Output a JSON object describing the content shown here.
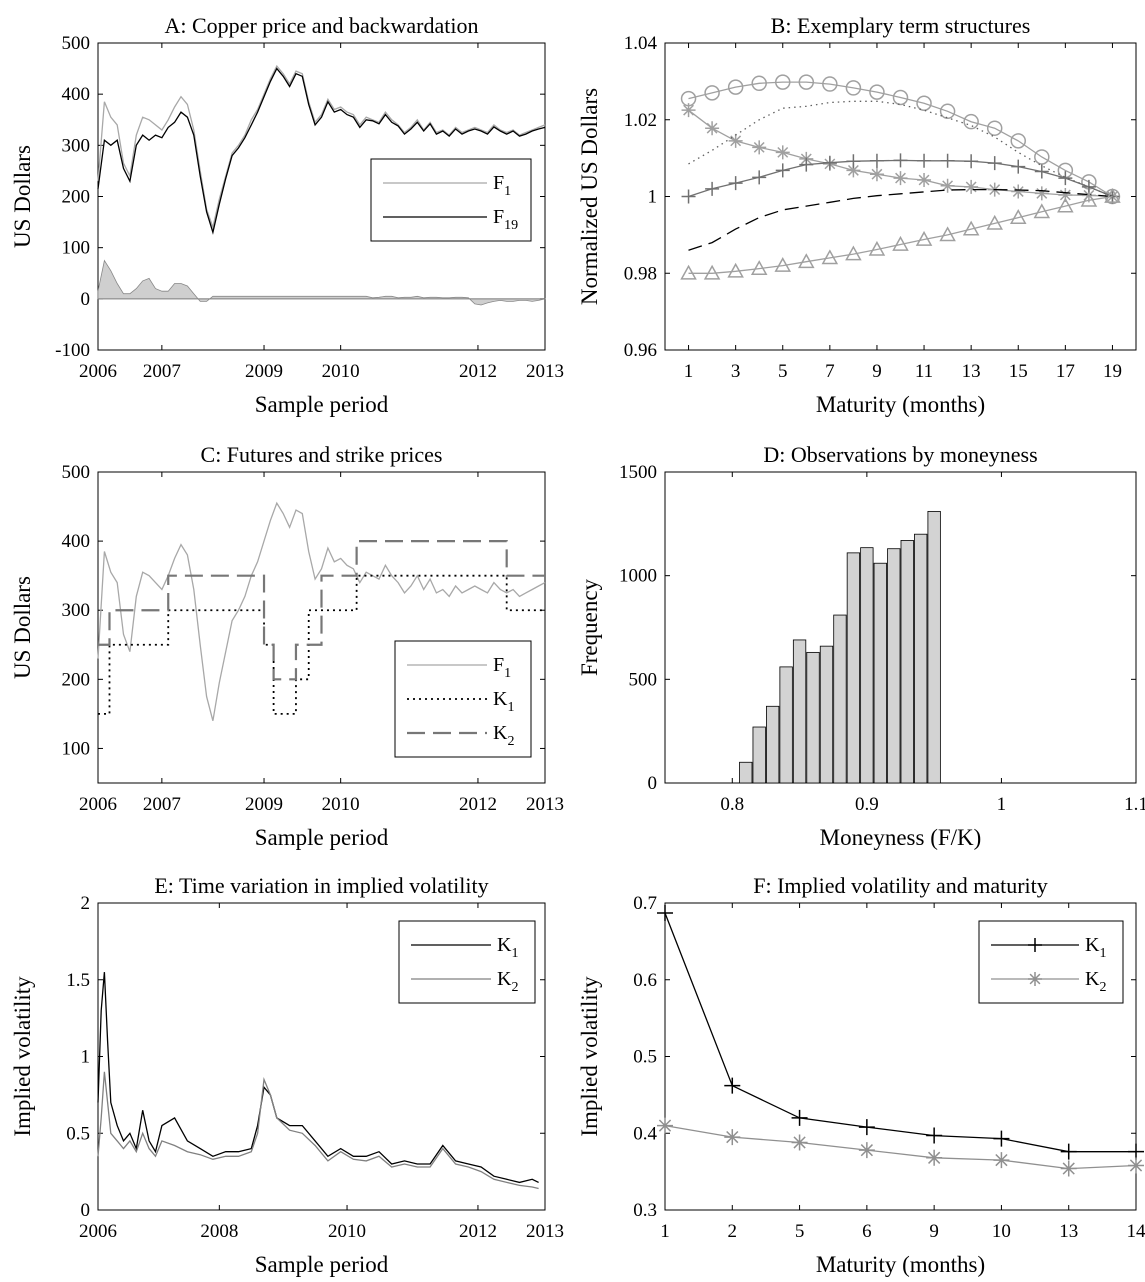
{
  "chart_data": [
    {
      "panel": "A",
      "type": "line",
      "title": "A: Copper price and backwardation",
      "xlabel": "Sample period",
      "ylabel": "US Dollars",
      "xlim": [
        2006,
        2013
      ],
      "ylim": [
        -100,
        500
      ],
      "xticks": [
        "2006",
        "2007",
        "2009",
        "2010",
        "2012",
        "2013"
      ],
      "yticks": [
        "-100",
        "0",
        "100",
        "200",
        "300",
        "400",
        "500"
      ],
      "legend_position": "right-center",
      "x": [
        2006.0,
        2006.1,
        2006.2,
        2006.3,
        2006.4,
        2006.5,
        2006.6,
        2006.7,
        2006.8,
        2006.9,
        2007.0,
        2007.1,
        2007.2,
        2007.3,
        2007.4,
        2007.5,
        2007.6,
        2007.7,
        2007.8,
        2007.9,
        2008.0,
        2008.1,
        2008.2,
        2008.3,
        2008.4,
        2008.5,
        2008.6,
        2008.7,
        2008.8,
        2008.9,
        2009.0,
        2009.1,
        2009.2,
        2009.3,
        2009.4,
        2009.5,
        2009.6,
        2009.7,
        2009.8,
        2009.9,
        2010.0,
        2010.1,
        2010.2,
        2010.3,
        2010.4,
        2010.5,
        2010.6,
        2010.7,
        2010.8,
        2010.9,
        2011.0,
        2011.1,
        2011.2,
        2011.3,
        2011.4,
        2011.5,
        2011.6,
        2011.7,
        2011.8,
        2011.9,
        2012.0,
        2012.1,
        2012.2,
        2012.3,
        2012.4,
        2012.5,
        2012.6,
        2012.7,
        2012.8,
        2012.9,
        2013.0
      ],
      "series": [
        {
          "name": "F1",
          "color": "#a8a8a8",
          "values": [
            230,
            385,
            355,
            340,
            265,
            240,
            320,
            355,
            350,
            340,
            330,
            350,
            375,
            395,
            380,
            330,
            250,
            175,
            140,
            195,
            240,
            285,
            300,
            320,
            350,
            370,
            400,
            430,
            455,
            440,
            420,
            445,
            440,
            385,
            345,
            360,
            390,
            370,
            375,
            365,
            360,
            340,
            355,
            350,
            345,
            365,
            350,
            340,
            325,
            335,
            350,
            330,
            345,
            325,
            330,
            320,
            335,
            325,
            330,
            335,
            330,
            325,
            340,
            330,
            325,
            330,
            320,
            325,
            330,
            335,
            340
          ]
        },
        {
          "name": "F19",
          "color": "#000000",
          "values": [
            215,
            310,
            300,
            310,
            255,
            230,
            300,
            320,
            310,
            320,
            315,
            335,
            345,
            365,
            355,
            320,
            240,
            170,
            130,
            185,
            235,
            280,
            295,
            315,
            340,
            365,
            395,
            425,
            450,
            435,
            415,
            440,
            435,
            380,
            340,
            355,
            385,
            365,
            370,
            360,
            355,
            335,
            350,
            348,
            342,
            360,
            345,
            338,
            322,
            332,
            345,
            328,
            342,
            322,
            328,
            318,
            332,
            322,
            328,
            332,
            328,
            322,
            336,
            328,
            322,
            328,
            318,
            322,
            328,
            332,
            335
          ]
        },
        {
          "name": "backwardation",
          "color": "#cfcfcf",
          "values": [
            15,
            75,
            55,
            30,
            10,
            10,
            20,
            35,
            40,
            20,
            15,
            15,
            30,
            30,
            25,
            10,
            -5,
            -5,
            5,
            5,
            5,
            5,
            5,
            5,
            5,
            5,
            5,
            5,
            5,
            5,
            5,
            5,
            5,
            5,
            5,
            5,
            5,
            5,
            5,
            5,
            5,
            5,
            5,
            2,
            3,
            5,
            5,
            2,
            3,
            3,
            5,
            2,
            3,
            3,
            2,
            2,
            3,
            3,
            2,
            -10,
            -12,
            -8,
            -5,
            -3,
            -5,
            -5,
            -3,
            -3,
            -5,
            -3,
            0
          ]
        }
      ]
    },
    {
      "panel": "B",
      "type": "line",
      "title": "B: Exemplary term structures",
      "xlabel": "Maturity (months)",
      "ylabel": "Normalized US Dollars",
      "xlim": [
        0,
        20
      ],
      "ylim": [
        0.96,
        1.04
      ],
      "xticks": [
        "1",
        "3",
        "5",
        "7",
        "9",
        "11",
        "13",
        "15",
        "17",
        "19"
      ],
      "yticks": [
        "0.96",
        "0.98",
        "1",
        "1.02",
        "1.04"
      ],
      "x": [
        1,
        2,
        3,
        4,
        5,
        6,
        7,
        8,
        9,
        10,
        11,
        12,
        13,
        14,
        15,
        16,
        17,
        18,
        19
      ],
      "series": [
        {
          "marker": "circle",
          "color": "#a0a0a0",
          "values": [
            1.0255,
            1.027,
            1.0285,
            1.0295,
            1.0298,
            1.0298,
            1.0293,
            1.0283,
            1.0272,
            1.0258,
            1.0243,
            1.0222,
            1.0195,
            1.0178,
            1.0145,
            1.0103,
            1.0068,
            1.0038,
            1.0
          ]
        },
        {
          "marker": "star",
          "color": "#a0a0a0",
          "values": [
            1.0225,
            1.0178,
            1.0145,
            1.0128,
            1.0115,
            1.0098,
            1.0085,
            1.0068,
            1.0058,
            1.0048,
            1.0043,
            1.0028,
            1.0025,
            1.0018,
            1.0013,
            1.0008,
            1.0004,
            1.0003,
            1.0
          ]
        },
        {
          "marker": "plus",
          "color": "#707070",
          "values": [
            1.0,
            1.002,
            1.0035,
            1.005,
            1.0068,
            1.0083,
            1.0088,
            1.0092,
            1.0093,
            1.0094,
            1.0093,
            1.0093,
            1.0092,
            1.0087,
            1.0078,
            1.0065,
            1.0048,
            1.0025,
            1.0
          ]
        },
        {
          "marker": "none",
          "style": "dotted",
          "color": "#606060",
          "values": [
            1.0085,
            1.012,
            1.016,
            1.02,
            1.023,
            1.0235,
            1.0245,
            1.0248,
            1.0248,
            1.024,
            1.0225,
            1.0205,
            1.0185,
            1.0155,
            1.0115,
            1.008,
            1.005,
            1.0025,
            1.0
          ]
        },
        {
          "marker": "none",
          "style": "dashed",
          "color": "#000000",
          "values": [
            0.986,
            0.988,
            0.9915,
            0.9945,
            0.9965,
            0.9975,
            0.9985,
            0.9995,
            1.0002,
            1.0007,
            1.0012,
            1.0017,
            1.0018,
            1.0018,
            1.0017,
            1.0015,
            1.001,
            1.0005,
            1.0
          ]
        },
        {
          "marker": "triangle",
          "color": "#a0a0a0",
          "values": [
            0.98,
            0.98,
            0.9805,
            0.9812,
            0.982,
            0.983,
            0.984,
            0.985,
            0.9862,
            0.9875,
            0.9888,
            0.99,
            0.9915,
            0.993,
            0.9945,
            0.996,
            0.9975,
            0.999,
            1.0
          ]
        }
      ]
    },
    {
      "panel": "C",
      "type": "line",
      "title": "C: Futures and strike prices",
      "xlabel": "Sample period",
      "ylabel": "US Dollars",
      "xlim": [
        2006,
        2013
      ],
      "ylim": [
        50,
        500
      ],
      "xticks": [
        "2006",
        "2007",
        "2009",
        "2010",
        "2012",
        "2013"
      ],
      "yticks": [
        "100",
        "200",
        "300",
        "400",
        "500"
      ],
      "legend_position": "bottom-center",
      "series": [
        {
          "name": "F1",
          "style": "solid",
          "color": "#a8a8a8",
          "ref": "panelA.F1"
        },
        {
          "name": "K1",
          "style": "dotted",
          "color": "#000000",
          "steps": [
            [
              2006.0,
              150
            ],
            [
              2006.18,
              250
            ],
            [
              2007.1,
              300
            ],
            [
              2008.6,
              250
            ],
            [
              2008.75,
              150
            ],
            [
              2009.1,
              200
            ],
            [
              2009.3,
              300
            ],
            [
              2009.6,
              300
            ],
            [
              2010.05,
              350
            ],
            [
              2012.4,
              300
            ],
            [
              2013.0,
              300
            ]
          ]
        },
        {
          "name": "K2",
          "style": "dashed",
          "color": "#777777",
          "steps": [
            [
              2006.0,
              250
            ],
            [
              2006.18,
              300
            ],
            [
              2007.1,
              350
            ],
            [
              2008.6,
              250
            ],
            [
              2008.75,
              200
            ],
            [
              2009.1,
              250
            ],
            [
              2009.5,
              350
            ],
            [
              2010.05,
              400
            ],
            [
              2012.4,
              350
            ],
            [
              2013.0,
              350
            ]
          ]
        }
      ]
    },
    {
      "panel": "D",
      "type": "bar",
      "title": "D: Observations by moneyness",
      "xlabel": "Moneyness (F/K)",
      "ylabel": "Frequency",
      "xlim": [
        0.75,
        1.1
      ],
      "ylim": [
        0,
        1500
      ],
      "xticks": [
        "0.8",
        "0.9",
        "1",
        "1.1"
      ],
      "yticks": [
        "0",
        "500",
        "1000",
        "1500"
      ],
      "bin_centers": [
        0.81,
        0.82,
        0.83,
        0.84,
        0.85,
        0.86,
        0.87,
        0.88,
        0.89,
        0.9,
        0.91,
        0.92,
        0.93,
        0.94,
        0.95,
        0.96,
        0.97,
        0.98,
        0.99,
        1.0,
        1.01,
        1.02,
        1.03,
        1.04
      ],
      "values": [
        100,
        270,
        370,
        560,
        690,
        630,
        660,
        810,
        1110,
        1135,
        1060,
        1130,
        1170,
        1200,
        1310,
        0,
        0,
        0,
        0,
        0,
        0,
        0,
        0,
        0
      ],
      "bar_color": "#d3d3d3"
    },
    {
      "panel": "E",
      "type": "line",
      "title": "E: Time variation in implied volatility",
      "xlabel": "Sample period",
      "ylabel": "Implied volatility",
      "xlim": [
        2006,
        2013
      ],
      "ylim": [
        0,
        2
      ],
      "xticks": [
        "2006",
        "2008",
        "2010",
        "2012",
        "2013"
      ],
      "yticks": [
        "0",
        "0.5",
        "1",
        "1.5",
        "2"
      ],
      "legend_position": "top-right",
      "x": [
        2006.0,
        2006.05,
        2006.1,
        2006.15,
        2006.2,
        2006.3,
        2006.4,
        2006.5,
        2006.6,
        2006.7,
        2006.8,
        2006.9,
        2007.0,
        2007.2,
        2007.4,
        2007.6,
        2007.8,
        2008.0,
        2008.2,
        2008.4,
        2008.5,
        2008.6,
        2008.7,
        2008.8,
        2009.0,
        2009.2,
        2009.4,
        2009.6,
        2009.8,
        2010.0,
        2010.2,
        2010.4,
        2010.6,
        2010.8,
        2011.0,
        2011.2,
        2011.4,
        2011.6,
        2011.8,
        2012.0,
        2012.2,
        2012.4,
        2012.6,
        2012.8,
        2012.9
      ],
      "series": [
        {
          "name": "K1",
          "color": "#000000",
          "values": [
            0.7,
            1.3,
            1.55,
            1.1,
            0.7,
            0.55,
            0.45,
            0.5,
            0.4,
            0.65,
            0.45,
            0.38,
            0.55,
            0.6,
            0.45,
            0.4,
            0.35,
            0.38,
            0.38,
            0.4,
            0.55,
            0.8,
            0.75,
            0.6,
            0.55,
            0.55,
            0.45,
            0.35,
            0.4,
            0.35,
            0.35,
            0.38,
            0.3,
            0.32,
            0.3,
            0.3,
            0.42,
            0.32,
            0.3,
            0.28,
            0.22,
            0.2,
            0.18,
            0.2,
            0.18
          ]
        },
        {
          "name": "K2",
          "color": "#808080",
          "values": [
            0.35,
            0.6,
            0.9,
            0.7,
            0.5,
            0.45,
            0.4,
            0.45,
            0.38,
            0.5,
            0.4,
            0.35,
            0.45,
            0.42,
            0.38,
            0.36,
            0.33,
            0.35,
            0.35,
            0.38,
            0.5,
            0.85,
            0.75,
            0.6,
            0.52,
            0.5,
            0.42,
            0.32,
            0.38,
            0.33,
            0.32,
            0.35,
            0.28,
            0.3,
            0.28,
            0.28,
            0.4,
            0.3,
            0.28,
            0.25,
            0.2,
            0.18,
            0.16,
            0.15,
            0.14
          ]
        }
      ]
    },
    {
      "panel": "F",
      "type": "line",
      "title": "F: Implied volatility and maturity",
      "xlabel": "Maturity (months)",
      "ylabel": "Implied volatility",
      "categories": [
        "1",
        "2",
        "5",
        "6",
        "9",
        "10",
        "13",
        "14"
      ],
      "ylim": [
        0.3,
        0.7
      ],
      "yticks": [
        "0.3",
        "0.4",
        "0.5",
        "0.6",
        "0.7"
      ],
      "legend_position": "top-right",
      "series": [
        {
          "name": "K1",
          "marker": "plus",
          "color": "#000000",
          "values": [
            0.687,
            0.462,
            0.42,
            0.408,
            0.397,
            0.393,
            0.376,
            0.376
          ]
        },
        {
          "name": "K2",
          "marker": "star",
          "color": "#909090",
          "values": [
            0.41,
            0.395,
            0.388,
            0.378,
            0.368,
            0.365,
            0.354,
            0.358
          ]
        }
      ]
    }
  ]
}
